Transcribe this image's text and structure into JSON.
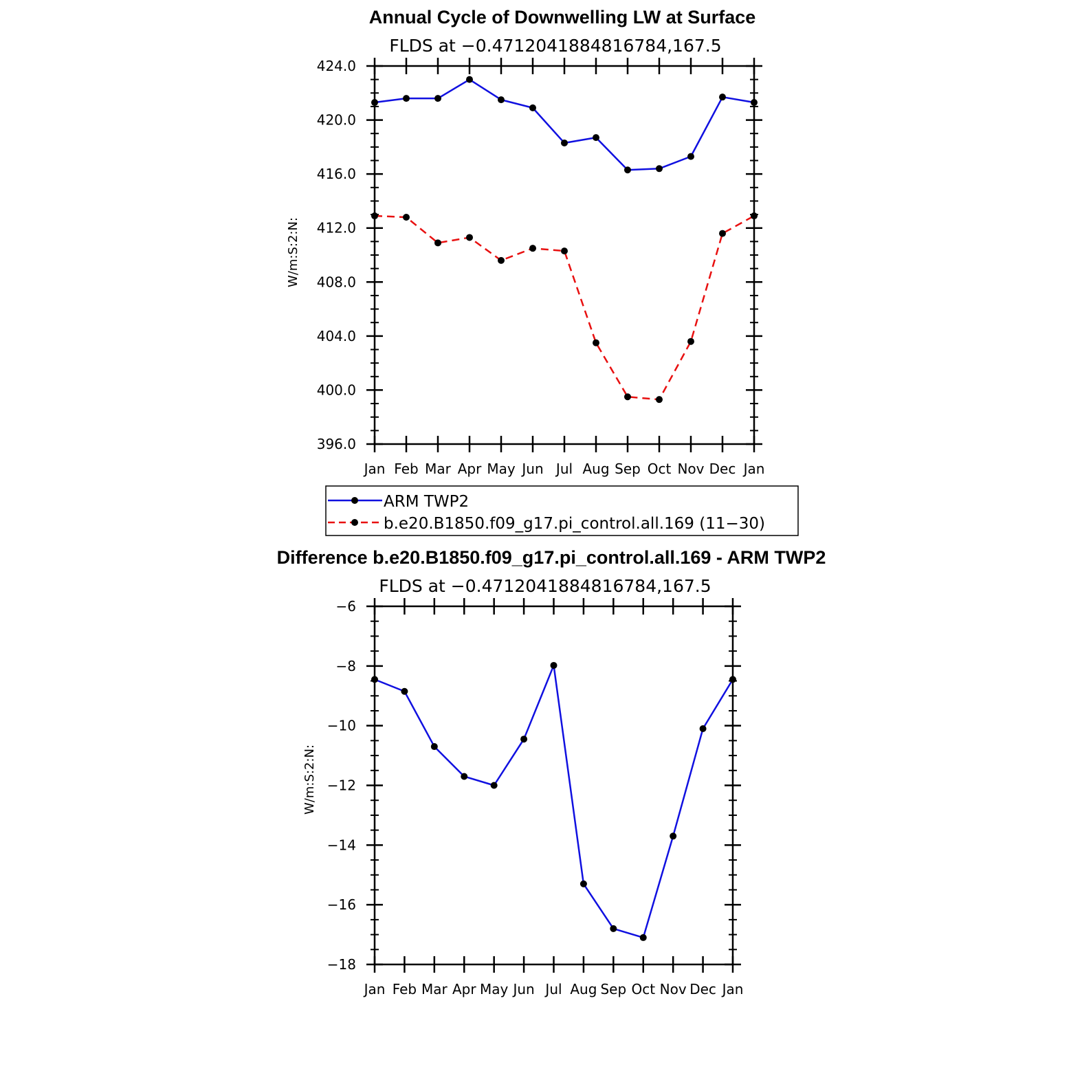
{
  "colors": {
    "blue": "#1010e0",
    "red": "#e81010",
    "marker": "#000000"
  },
  "legend": {
    "items": [
      {
        "label": "ARM TWP2",
        "color": "#1010e0",
        "style": "solid"
      },
      {
        "label": "b.e20.B1850.f09_g17.pi_control.all.169 (11−30)",
        "color": "#e81010",
        "style": "dashed"
      }
    ]
  },
  "chart_data": [
    {
      "type": "line",
      "title": "Annual Cycle of Downwelling LW at Surface",
      "subtitle": "FLDS at −0.4712041884816784,167.5",
      "ylabel": "W/m:S:2:N:",
      "xlabel": "",
      "categories": [
        "Jan",
        "Feb",
        "Mar",
        "Apr",
        "May",
        "Jun",
        "Jul",
        "Aug",
        "Sep",
        "Oct",
        "Nov",
        "Dec",
        "Jan"
      ],
      "ylim": [
        396,
        424
      ],
      "yticks": [
        396,
        400,
        404,
        408,
        412,
        416,
        420,
        424
      ],
      "ytick_labels": [
        "396.0",
        "400.0",
        "404.0",
        "408.0",
        "412.0",
        "416.0",
        "420.0",
        "424.0"
      ],
      "grid": false,
      "legend_position": "below",
      "series": [
        {
          "name": "ARM TWP2",
          "color": "#1010e0",
          "dashed": false,
          "values": [
            421.3,
            421.6,
            421.6,
            423.0,
            421.5,
            420.9,
            418.3,
            418.7,
            416.3,
            416.4,
            417.3,
            421.7,
            421.3
          ]
        },
        {
          "name": "b.e20.B1850.f09_g17.pi_control.all.169 (11−30)",
          "color": "#e81010",
          "dashed": true,
          "values": [
            412.9,
            412.8,
            410.9,
            411.3,
            409.6,
            410.5,
            410.3,
            403.5,
            399.5,
            399.3,
            403.6,
            411.6,
            412.9
          ]
        }
      ]
    },
    {
      "type": "line",
      "title": "Difference b.e20.B1850.f09_g17.pi_control.all.169 - ARM TWP2",
      "subtitle": "FLDS at −0.4712041884816784,167.5",
      "ylabel": "W/m:S:2:N:",
      "xlabel": "",
      "categories": [
        "Jan",
        "Feb",
        "Mar",
        "Apr",
        "May",
        "Jun",
        "Jul",
        "Aug",
        "Sep",
        "Oct",
        "Nov",
        "Dec",
        "Jan"
      ],
      "ylim": [
        -18,
        -6
      ],
      "yticks": [
        -18,
        -16,
        -14,
        -12,
        -10,
        -8,
        -6
      ],
      "ytick_labels": [
        "−18",
        "−16",
        "−14",
        "−12",
        "−10",
        "−8",
        "−6"
      ],
      "grid": false,
      "series": [
        {
          "color": "#1010e0",
          "dashed": false,
          "values": [
            -8.45,
            -8.85,
            -10.7,
            -11.7,
            -12.0,
            -10.45,
            -7.98,
            -15.3,
            -16.8,
            -17.1,
            -13.7,
            -10.1,
            -8.45
          ]
        }
      ]
    }
  ]
}
